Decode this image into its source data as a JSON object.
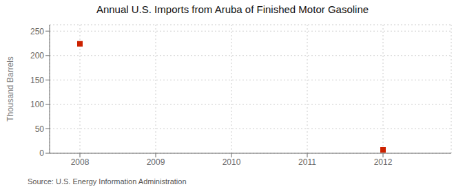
{
  "chart_data": {
    "type": "scatter",
    "title": "Annual U.S. Imports from Aruba of Finished Motor Gasoline",
    "y_label": "Thousand Barrels",
    "annotations": [
      "Source: U.S. Energy Information Administration"
    ],
    "x": [
      2008,
      2012
    ],
    "values": [
      224,
      7
    ],
    "color": "#cc2200",
    "marker": "square",
    "xlim": [
      2007.6,
      2012.9
    ],
    "xticks": [
      2008,
      2009,
      2010,
      2011,
      2012
    ],
    "ylim": [
      0,
      263
    ],
    "yticks": [
      0,
      50,
      100,
      150,
      200,
      250
    ],
    "grid": true
  }
}
